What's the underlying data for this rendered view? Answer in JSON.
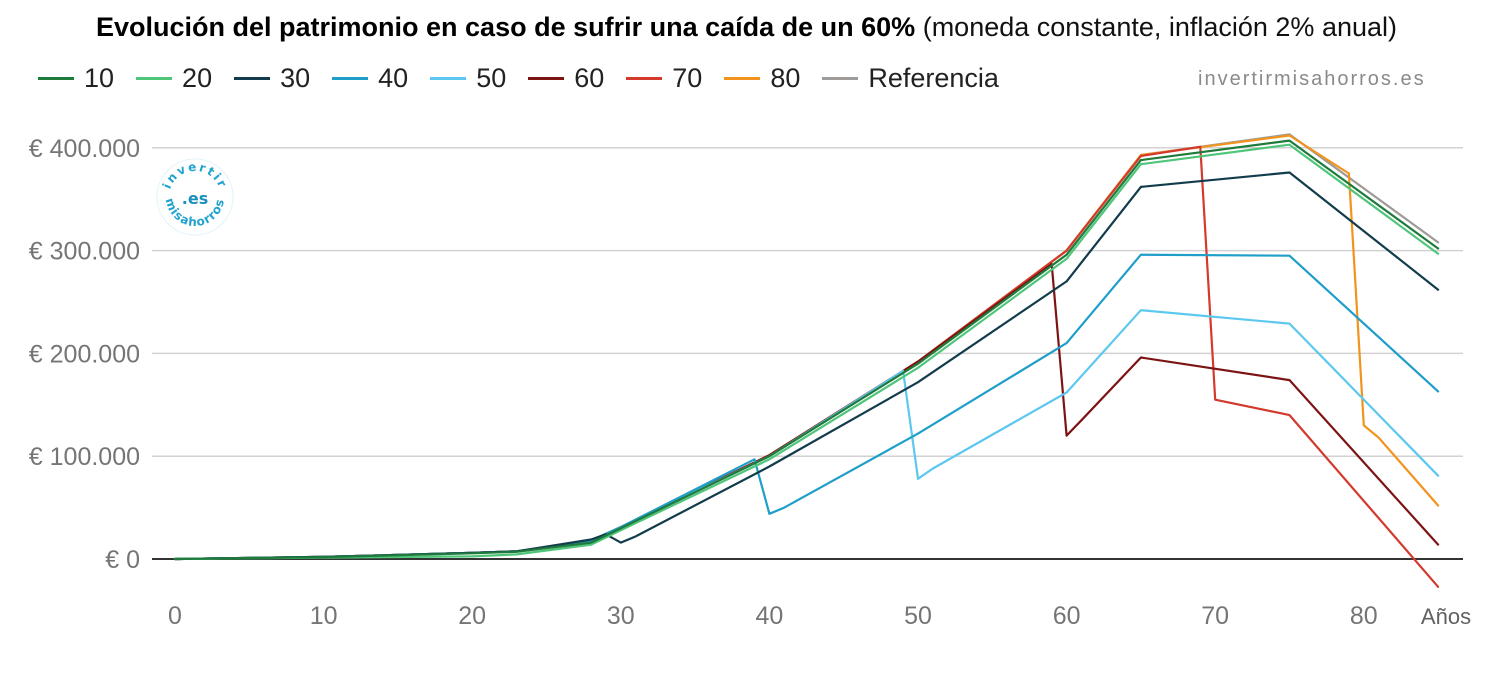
{
  "title": {
    "bold": "Evolución del patrimonio en caso de sufrir una caída de un 60%",
    "normal": " (moneda constante, inflación 2% anual)"
  },
  "watermark": "invertirmisahorros.es",
  "logo": {
    "top_text": "invertir",
    "middle_text": ".es",
    "bottom_text": "misahorros"
  },
  "chart_data": {
    "type": "line",
    "title": "Evolución del patrimonio en caso de sufrir una caída de un 60% (moneda constante, inflación 2% anual)",
    "xlabel": "Años",
    "ylabel": "",
    "xlim": [
      0,
      86
    ],
    "ylim": [
      -30000,
      410000
    ],
    "xticks": [
      0,
      10,
      20,
      30,
      40,
      50,
      60,
      70,
      80
    ],
    "yticks": [
      0,
      100000,
      200000,
      300000,
      400000
    ],
    "ytick_labels": [
      "€  0",
      "€  100.000",
      "€  200.000",
      "€  300.000",
      "€  400.000"
    ],
    "grid": true,
    "legend_position": "top-left",
    "series": [
      {
        "name": "10",
        "color": "#1e7b3c",
        "points": [
          [
            0,
            0
          ],
          [
            10,
            1800
          ],
          [
            20,
            5500
          ],
          [
            23,
            7000
          ],
          [
            28,
            16000
          ],
          [
            30,
            30000
          ],
          [
            40,
            100000
          ],
          [
            50,
            190000
          ],
          [
            60,
            296000
          ],
          [
            65,
            388000
          ],
          [
            75,
            407000
          ],
          [
            85,
            302000
          ]
        ]
      },
      {
        "name": "20",
        "color": "#4fc57a",
        "points": [
          [
            0,
            0
          ],
          [
            10,
            1300
          ],
          [
            20,
            2500
          ],
          [
            23,
            4500
          ],
          [
            28,
            14000
          ],
          [
            30,
            28000
          ],
          [
            40,
            97000
          ],
          [
            50,
            186000
          ],
          [
            60,
            292000
          ],
          [
            65,
            384000
          ],
          [
            75,
            403000
          ],
          [
            85,
            297000
          ]
        ]
      },
      {
        "name": "30",
        "color": "#123c4b",
        "points": [
          [
            0,
            0
          ],
          [
            10,
            2000
          ],
          [
            20,
            6000
          ],
          [
            23,
            7500
          ],
          [
            28,
            19000
          ],
          [
            29,
            24000
          ],
          [
            30,
            16000
          ],
          [
            31,
            22000
          ],
          [
            40,
            90000
          ],
          [
            50,
            172000
          ],
          [
            60,
            270000
          ],
          [
            65,
            362000
          ],
          [
            75,
            376000
          ],
          [
            85,
            262000
          ]
        ]
      },
      {
        "name": "40",
        "color": "#1e9ec9",
        "points": [
          [
            0,
            0
          ],
          [
            10,
            2000
          ],
          [
            20,
            6000
          ],
          [
            23,
            7500
          ],
          [
            28,
            18000
          ],
          [
            30,
            31000
          ],
          [
            39,
            97000
          ],
          [
            40,
            44000
          ],
          [
            41,
            50000
          ],
          [
            50,
            122000
          ],
          [
            60,
            210000
          ],
          [
            65,
            296000
          ],
          [
            75,
            295000
          ],
          [
            85,
            163000
          ]
        ]
      },
      {
        "name": "50",
        "color": "#5cc8ef",
        "points": [
          [
            0,
            0
          ],
          [
            10,
            2000
          ],
          [
            20,
            6000
          ],
          [
            23,
            7500
          ],
          [
            28,
            18000
          ],
          [
            30,
            31000
          ],
          [
            40,
            100000
          ],
          [
            49,
            183000
          ],
          [
            50,
            78000
          ],
          [
            51,
            88000
          ],
          [
            60,
            162000
          ],
          [
            65,
            242000
          ],
          [
            75,
            229000
          ],
          [
            85,
            81000
          ]
        ]
      },
      {
        "name": "60",
        "color": "#7d1414",
        "points": [
          [
            0,
            0
          ],
          [
            10,
            2000
          ],
          [
            20,
            6000
          ],
          [
            23,
            7500
          ],
          [
            28,
            18000
          ],
          [
            30,
            31000
          ],
          [
            40,
            101000
          ],
          [
            50,
            192000
          ],
          [
            59,
            287000
          ],
          [
            60,
            120000
          ],
          [
            61,
            135000
          ],
          [
            65,
            196000
          ],
          [
            75,
            174000
          ],
          [
            85,
            14000
          ]
        ]
      },
      {
        "name": "70",
        "color": "#d33a2c",
        "points": [
          [
            0,
            0
          ],
          [
            10,
            2000
          ],
          [
            20,
            6000
          ],
          [
            23,
            7500
          ],
          [
            28,
            18000
          ],
          [
            30,
            31000
          ],
          [
            40,
            101000
          ],
          [
            50,
            192000
          ],
          [
            60,
            300000
          ],
          [
            65,
            392000
          ],
          [
            69,
            401000
          ],
          [
            70,
            155000
          ],
          [
            75,
            140000
          ],
          [
            85,
            -27000
          ]
        ]
      },
      {
        "name": "80",
        "color": "#f2941c",
        "points": [
          [
            0,
            0
          ],
          [
            10,
            2000
          ],
          [
            20,
            6000
          ],
          [
            23,
            7500
          ],
          [
            28,
            18000
          ],
          [
            30,
            31000
          ],
          [
            40,
            101000
          ],
          [
            50,
            192000
          ],
          [
            60,
            300000
          ],
          [
            65,
            393000
          ],
          [
            75,
            412000
          ],
          [
            79,
            375000
          ],
          [
            80,
            130000
          ],
          [
            81,
            118000
          ],
          [
            85,
            52000
          ]
        ]
      },
      {
        "name": "Referencia",
        "color": "#9e9b98",
        "points": [
          [
            0,
            0
          ],
          [
            10,
            2000
          ],
          [
            20,
            6000
          ],
          [
            23,
            7500
          ],
          [
            28,
            18000
          ],
          [
            30,
            31000
          ],
          [
            40,
            101000
          ],
          [
            50,
            192000
          ],
          [
            60,
            300000
          ],
          [
            65,
            393000
          ],
          [
            75,
            413000
          ],
          [
            85,
            308000
          ]
        ]
      }
    ]
  }
}
